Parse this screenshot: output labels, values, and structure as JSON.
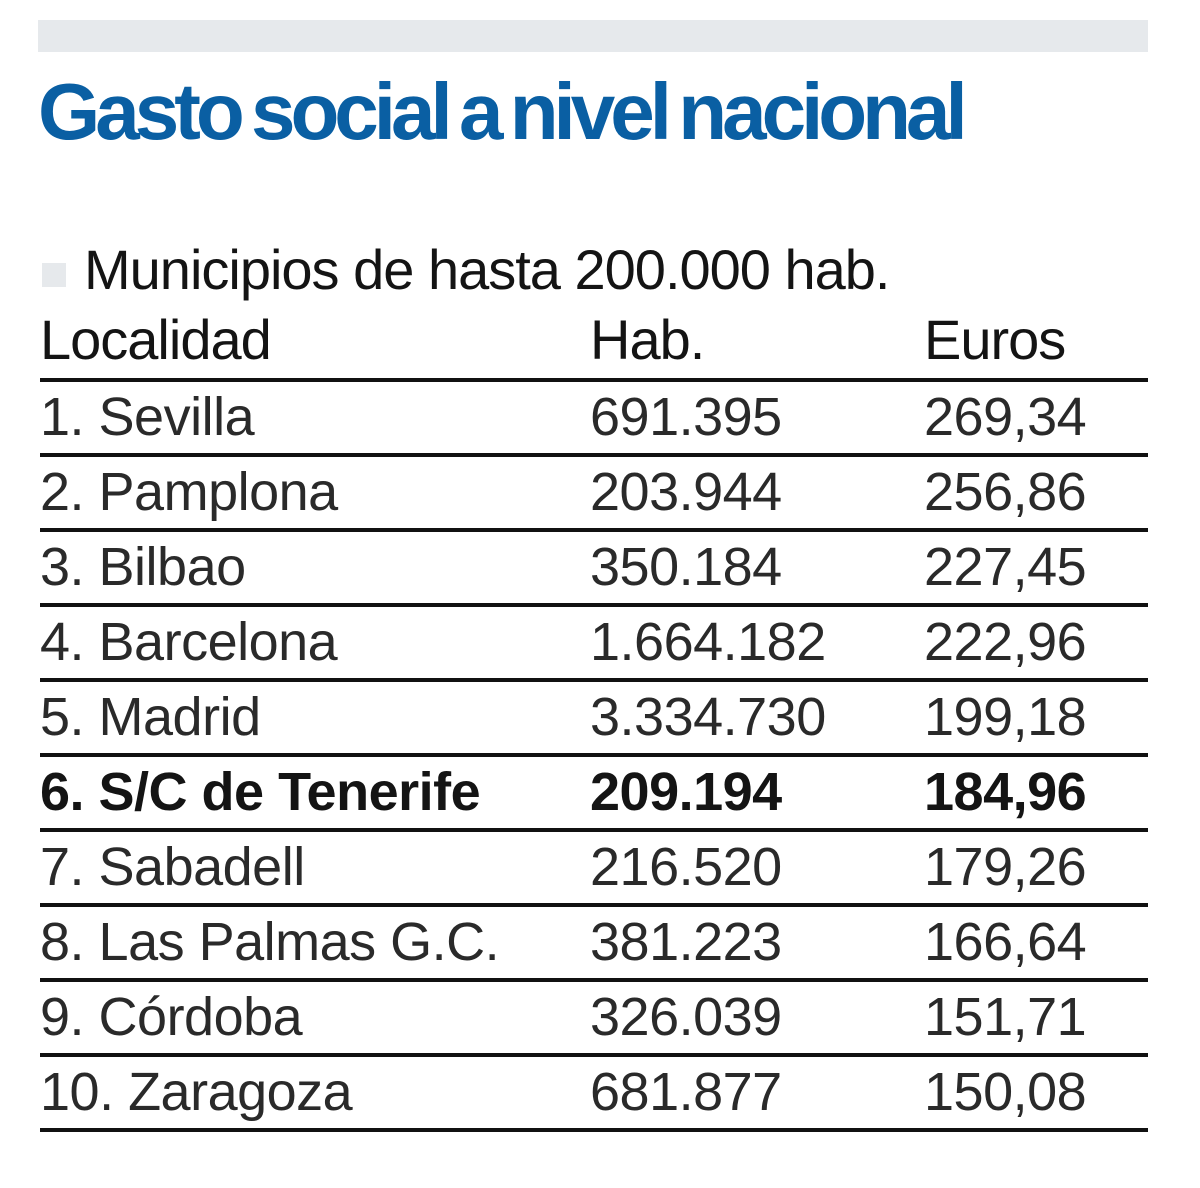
{
  "header": {
    "title": "Gasto social a nivel nacional",
    "title_color": "#0a5fa3"
  },
  "section": {
    "subtitle": "Municipios de hasta 200.000 hab."
  },
  "table": {
    "columns": [
      "Localidad",
      "Hab.",
      "Euros"
    ],
    "rows": [
      {
        "localidad": "1. Sevilla",
        "hab": "691.395",
        "euros": "269,34"
      },
      {
        "localidad": "2. Pamplona",
        "hab": "203.944",
        "euros": "256,86"
      },
      {
        "localidad": "3. Bilbao",
        "hab": "350.184",
        "euros": "227,45"
      },
      {
        "localidad": "4. Barcelona",
        "hab": "1.664.182",
        "euros": "222,96"
      },
      {
        "localidad": "5. Madrid",
        "hab": "3.334.730",
        "euros": "199,18"
      },
      {
        "localidad": "6. S/C de Tenerife",
        "hab": "209.194",
        "euros": "184,96",
        "highlight": true
      },
      {
        "localidad": "7. Sabadell",
        "hab": "216.520",
        "euros": "179,26"
      },
      {
        "localidad": "8. Las Palmas G.C.",
        "hab": "381.223",
        "euros": "166,64"
      },
      {
        "localidad": "9. Córdoba",
        "hab": "326.039",
        "euros": "151,71"
      },
      {
        "localidad": "10. Zaragoza",
        "hab": "681.877",
        "euros": "150,08"
      }
    ]
  }
}
